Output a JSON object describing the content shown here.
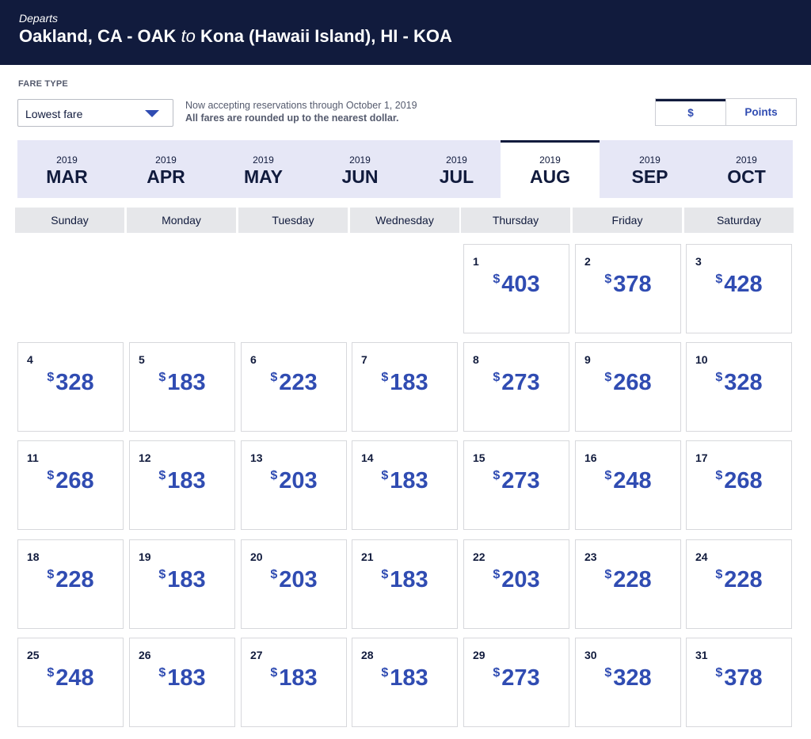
{
  "header": {
    "departs_label": "Departs",
    "origin": "Oakland, CA - OAK",
    "connector": "to",
    "destination": "Kona (Hawaii Island), HI - KOA"
  },
  "fare_type": {
    "label": "FARE TYPE",
    "selected": "Lowest fare"
  },
  "notice": {
    "line1": "Now accepting reservations through October 1, 2019",
    "line2": "All fares are rounded up to the nearest dollar."
  },
  "currency_toggle": {
    "options": [
      "$",
      "Points"
    ],
    "active": "$"
  },
  "months": [
    {
      "year": "2019",
      "month": "MAR"
    },
    {
      "year": "2019",
      "month": "APR"
    },
    {
      "year": "2019",
      "month": "MAY"
    },
    {
      "year": "2019",
      "month": "JUN"
    },
    {
      "year": "2019",
      "month": "JUL"
    },
    {
      "year": "2019",
      "month": "AUG"
    },
    {
      "year": "2019",
      "month": "SEP"
    },
    {
      "year": "2019",
      "month": "OCT"
    }
  ],
  "active_month": "AUG",
  "weekdays": [
    "Sunday",
    "Monday",
    "Tuesday",
    "Wednesday",
    "Thursday",
    "Friday",
    "Saturday"
  ],
  "currency_symbol": "$",
  "first_weekday_index": 4,
  "days": [
    {
      "day": "1",
      "price": "403"
    },
    {
      "day": "2",
      "price": "378"
    },
    {
      "day": "3",
      "price": "428"
    },
    {
      "day": "4",
      "price": "328"
    },
    {
      "day": "5",
      "price": "183"
    },
    {
      "day": "6",
      "price": "223"
    },
    {
      "day": "7",
      "price": "183"
    },
    {
      "day": "8",
      "price": "273"
    },
    {
      "day": "9",
      "price": "268"
    },
    {
      "day": "10",
      "price": "328"
    },
    {
      "day": "11",
      "price": "268"
    },
    {
      "day": "12",
      "price": "183"
    },
    {
      "day": "13",
      "price": "203"
    },
    {
      "day": "14",
      "price": "183"
    },
    {
      "day": "15",
      "price": "273"
    },
    {
      "day": "16",
      "price": "248"
    },
    {
      "day": "17",
      "price": "268"
    },
    {
      "day": "18",
      "price": "228"
    },
    {
      "day": "19",
      "price": "183"
    },
    {
      "day": "20",
      "price": "203"
    },
    {
      "day": "21",
      "price": "183"
    },
    {
      "day": "22",
      "price": "203"
    },
    {
      "day": "23",
      "price": "228"
    },
    {
      "day": "24",
      "price": "228"
    },
    {
      "day": "25",
      "price": "248"
    },
    {
      "day": "26",
      "price": "183"
    },
    {
      "day": "27",
      "price": "183"
    },
    {
      "day": "28",
      "price": "183"
    },
    {
      "day": "29",
      "price": "273"
    },
    {
      "day": "30",
      "price": "328"
    },
    {
      "day": "31",
      "price": "378"
    }
  ],
  "colors": {
    "header_bg": "#111b3d",
    "price_blue": "#304cb2",
    "month_strip_bg": "#e6e7f6",
    "weekday_bg": "#e6e7ea"
  }
}
